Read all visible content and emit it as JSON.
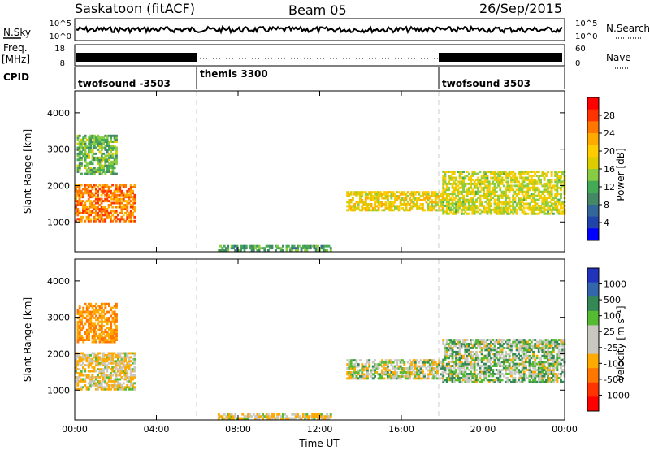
{
  "header": {
    "station": "Saskatoon (fitACF)",
    "beam": "Beam 05",
    "date": "26/Sep/2015"
  },
  "strips": {
    "nsky": {
      "label": "N.Sky",
      "left_ticks": [
        "10^5",
        "10^0"
      ],
      "right_ticks": [
        "10^5",
        "10^0"
      ],
      "right_label": "N.Search"
    },
    "freq": {
      "label_top": "Freq.",
      "label_unit": "[MHz]",
      "left_ticks": [
        "18",
        "8"
      ],
      "right_ticks": [
        "60",
        "0"
      ],
      "right_label": "Nave"
    },
    "cpid": {
      "label": "CPID",
      "segments": [
        {
          "name": "twofsound -3503",
          "start_hour": 0,
          "end_hour": 6
        },
        {
          "name": "themis 3300",
          "start_hour": 6,
          "end_hour": 18
        },
        {
          "name": "twofsound 3503",
          "start_hour": 18,
          "end_hour": 24
        }
      ]
    }
  },
  "axes": {
    "xlabel": "Time UT",
    "x_ticks": [
      "00:00",
      "04:00",
      "08:00",
      "12:00",
      "16:00",
      "20:00",
      "00:00"
    ],
    "x_range_hours": [
      0,
      24
    ],
    "ylabel": "Slant Range [km]",
    "y_ticks": [
      "4000",
      "3000",
      "2000",
      "1000"
    ],
    "y_tick_values": [
      4000,
      3000,
      2000,
      1000
    ],
    "y_range_km": [
      180,
      4600
    ]
  },
  "colorbars": {
    "power": {
      "label": "Power [dB]",
      "ticks": [
        "28",
        "24",
        "20",
        "16",
        "12",
        "8",
        "4"
      ],
      "colors": [
        "#ff0000",
        "#ff3300",
        "#ff7700",
        "#ffaa00",
        "#ffcc00",
        "#ddcc00",
        "#88cc44",
        "#44aa55",
        "#448866",
        "#336699",
        "#2244aa",
        "#0000ff"
      ]
    },
    "velocity": {
      "label": "Velocity [m s⁻¹]",
      "ticks": [
        "1000",
        "500",
        "100",
        "25",
        "-25",
        "-100",
        "-500",
        "-1000"
      ],
      "colors": [
        "#2233bb",
        "#3366aa",
        "#338855",
        "#55bb33",
        "#c8c8c0",
        "#c8c8c0",
        "#ffaa00",
        "#ff7700",
        "#ff3300",
        "#ff0000"
      ]
    }
  },
  "chart_data": {
    "type": "heatmap",
    "title": "Saskatoon (fitACF)  Beam 05  26/Sep/2015",
    "xlabel": "Time UT",
    "ylabel": "Slant Range [km]",
    "xlim_hours": [
      0,
      24
    ],
    "ylim_km": [
      180,
      4600
    ],
    "panels": [
      "Power [dB]",
      "Velocity [m s⁻¹]"
    ],
    "echo_regions": [
      {
        "t_start": 0.0,
        "t_end": 2.9,
        "r_low": 1000,
        "r_high": 2000,
        "power_db": 24,
        "velocity": -100
      },
      {
        "t_start": 0.1,
        "t_end": 2.0,
        "r_low": 2300,
        "r_high": 3350,
        "power_db": 12,
        "velocity": -500
      },
      {
        "t_start": 13.3,
        "t_end": 18.0,
        "r_low": 1300,
        "r_high": 1800,
        "power_db": 18,
        "velocity": -25
      },
      {
        "t_start": 18.0,
        "t_end": 24.0,
        "r_low": 1200,
        "r_high": 2400,
        "power_db": 16,
        "velocity": 25
      },
      {
        "t_start": 7.0,
        "t_end": 12.5,
        "r_low": 200,
        "r_high": 320,
        "power_db": 10,
        "velocity": -100
      }
    ]
  }
}
